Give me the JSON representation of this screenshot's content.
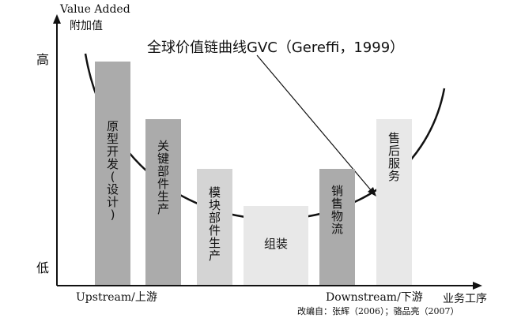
{
  "title": "全球价值链曲线GVC（Gereffi，1999）",
  "y_axis": {
    "label_en": "Value Added",
    "label_zh": "附加值",
    "high": "高",
    "low": "低"
  },
  "x_axis": {
    "upstream": "Upstream/上游",
    "downstream": "Downstream/下游",
    "label": "业务工序"
  },
  "source_note": "改编自：张辉（2006）；骆品亮（2007）",
  "watermark": "",
  "colors": {
    "dark_bar": "#ababab",
    "mid_bar": "#d4d4d4",
    "light_bar": "#e8e8e8",
    "curve": "#111111"
  },
  "stages": [
    {
      "label": "原型开发（设计）",
      "chars": [
        "原",
        "型",
        "开",
        "发",
        "(",
        "设",
        "计",
        ")"
      ]
    },
    {
      "label": "关键部件生产",
      "chars": [
        "关",
        "键",
        "部",
        "件",
        "生",
        "产"
      ]
    },
    {
      "label": "模块部件生产",
      "chars": [
        "模",
        "块",
        "部",
        "件",
        "生",
        "产"
      ]
    },
    {
      "label": "组装",
      "chars": [
        "组装"
      ]
    },
    {
      "label": "销售物流",
      "chars": [
        "销",
        "售",
        "物",
        "流"
      ]
    },
    {
      "label": "售后服务",
      "chars": [
        "售",
        "后",
        "服",
        "务"
      ]
    }
  ],
  "chart_data": {
    "type": "bar",
    "categories": [
      "原型开发（设计）",
      "关键部件生产",
      "模块部件生产",
      "组装",
      "销售物流",
      "售后服务"
    ],
    "values": [
      0.85,
      0.63,
      0.44,
      0.3,
      0.44,
      0.63
    ],
    "curve_name": "全球价值链曲线GVC（Gereffi，1999）",
    "ylabel": "Value Added 附加值",
    "xlabel": "业务工序",
    "y_levels": [
      "低",
      "高"
    ],
    "x_ends": [
      "Upstream/上游",
      "Downstream/下游"
    ]
  }
}
